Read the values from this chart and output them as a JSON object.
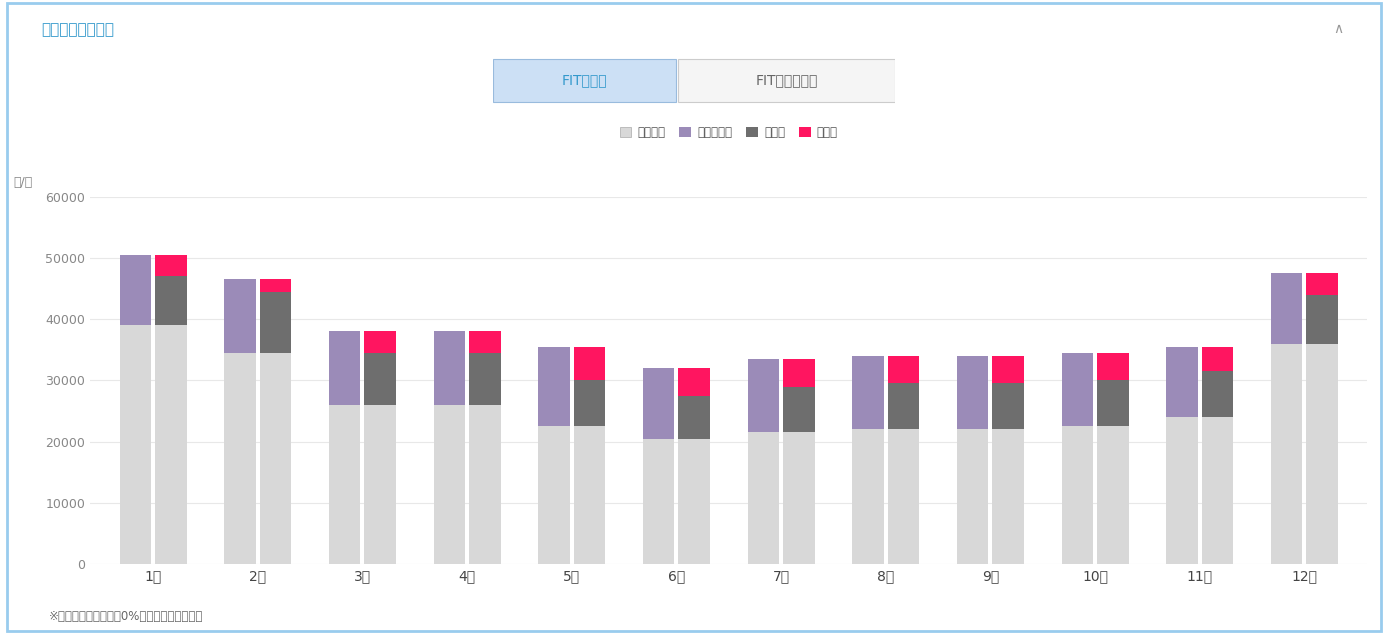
{
  "months": [
    "1月",
    "2月",
    "3月",
    "4月",
    "5月",
    "6月",
    "7月",
    "8月",
    "9月",
    "10月",
    "11月",
    "12月"
  ],
  "tab1": "FIT期間中",
  "tab2": "FIT期間終了後",
  "legend_labels": [
    "設備なし",
    "ガソリン代",
    "導入後",
    "削減額"
  ],
  "colors": {
    "setubi": "#d8d8d8",
    "gasoline": "#9b8bb8",
    "donyu": "#6e6e6e",
    "sakugen": "#ff1560"
  },
  "title": "月別で詳しく見る",
  "title_color": "#3399cc",
  "footnote": "※上記は電気代上昇率0%の場合のグラフです",
  "ylabel": "円/月",
  "ylim": [
    0,
    60000
  ],
  "yticks": [
    0,
    10000,
    20000,
    30000,
    40000,
    50000,
    60000
  ],
  "tab1_bg": "#cce0f5",
  "tab1_tc": "#3399cc",
  "tab2_bg": "#f5f5f5",
  "tab2_tc": "#666666",
  "border_color": "#99ccee",
  "grid_color": "#e8e8e8",
  "L_setubi": [
    39000,
    34500,
    26000,
    26000,
    22500,
    20500,
    21500,
    22000,
    22000,
    22500,
    24000,
    36000
  ],
  "L_gasoline": [
    11500,
    12000,
    12000,
    12000,
    13000,
    11500,
    12000,
    12000,
    12000,
    12000,
    11500,
    11500
  ],
  "R_setubi": [
    39000,
    34500,
    26000,
    26000,
    22500,
    20500,
    21500,
    22000,
    22000,
    22500,
    24000,
    36000
  ],
  "R_donyu": [
    8000,
    10000,
    8500,
    8500,
    7500,
    7000,
    7500,
    7500,
    7500,
    7500,
    7500,
    8000
  ],
  "R_sakugen": [
    3500,
    2000,
    3500,
    3500,
    5500,
    4500,
    4500,
    4500,
    4500,
    4500,
    4000,
    3500
  ]
}
